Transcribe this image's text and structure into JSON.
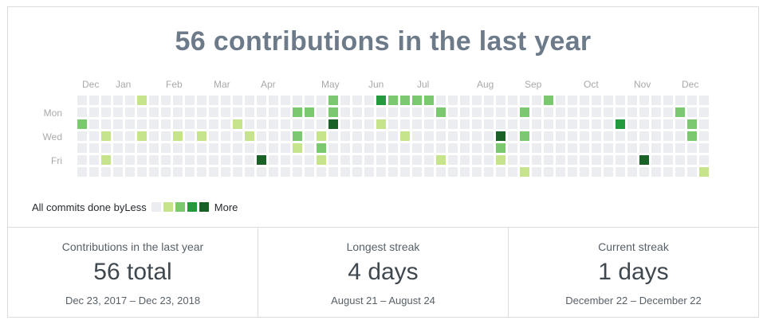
{
  "title": "56 contributions in the last year",
  "legend": {
    "prefix": "All commits done by",
    "less": "Less",
    "more": "More"
  },
  "chart_data": {
    "type": "heatmap",
    "weeks": 53,
    "days": 7,
    "levels": [
      "#ebedf0",
      "#c6e48b",
      "#7bc96f",
      "#239a3b",
      "#196127"
    ],
    "months": [
      {
        "label": "Dec",
        "week": 0.4
      },
      {
        "label": "Jan",
        "week": 3.2
      },
      {
        "label": "Feb",
        "week": 7.4
      },
      {
        "label": "Mar",
        "week": 11.4
      },
      {
        "label": "Apr",
        "week": 15.3
      },
      {
        "label": "May",
        "week": 20.4
      },
      {
        "label": "Jun",
        "week": 24.3
      },
      {
        "label": "Jul",
        "week": 28.4
      },
      {
        "label": "Aug",
        "week": 33.4
      },
      {
        "label": "Sep",
        "week": 37.4
      },
      {
        "label": "Oct",
        "week": 42.3
      },
      {
        "label": "Nov",
        "week": 46.5
      },
      {
        "label": "Dec",
        "week": 50.5
      }
    ],
    "day_labels": [
      {
        "label": "Mon",
        "row": 1
      },
      {
        "label": "Wed",
        "row": 3
      },
      {
        "label": "Fri",
        "row": 5
      }
    ],
    "cells": [
      [
        5,
        0,
        1
      ],
      [
        21,
        0,
        2
      ],
      [
        25,
        0,
        3
      ],
      [
        26,
        0,
        2
      ],
      [
        27,
        0,
        2
      ],
      [
        28,
        0,
        2
      ],
      [
        29,
        0,
        2
      ],
      [
        39,
        0,
        2
      ],
      [
        18,
        1,
        2
      ],
      [
        19,
        1,
        2
      ],
      [
        21,
        1,
        2
      ],
      [
        30,
        1,
        2
      ],
      [
        37,
        1,
        2
      ],
      [
        50,
        1,
        2
      ],
      [
        0,
        2,
        2
      ],
      [
        13,
        2,
        1
      ],
      [
        21,
        2,
        4
      ],
      [
        25,
        2,
        1
      ],
      [
        45,
        2,
        3
      ],
      [
        51,
        2,
        2
      ],
      [
        2,
        3,
        1
      ],
      [
        5,
        3,
        1
      ],
      [
        8,
        3,
        1
      ],
      [
        10,
        3,
        1
      ],
      [
        14,
        3,
        1
      ],
      [
        18,
        3,
        2
      ],
      [
        20,
        3,
        1
      ],
      [
        27,
        3,
        1
      ],
      [
        35,
        3,
        4
      ],
      [
        37,
        3,
        2
      ],
      [
        51,
        3,
        2
      ],
      [
        18,
        4,
        1
      ],
      [
        20,
        4,
        2
      ],
      [
        35,
        4,
        2
      ],
      [
        2,
        5,
        1
      ],
      [
        15,
        5,
        4
      ],
      [
        20,
        5,
        1
      ],
      [
        30,
        5,
        1
      ],
      [
        35,
        5,
        1
      ],
      [
        47,
        5,
        4
      ],
      [
        37,
        6,
        1
      ],
      [
        52,
        6,
        1
      ]
    ]
  },
  "stats": [
    {
      "label": "Contributions in the last year",
      "value": "56 total",
      "range": "Dec 23, 2017 – Dec 23, 2018"
    },
    {
      "label": "Longest streak",
      "value": "4 days",
      "range": "August 21 – August 24"
    },
    {
      "label": "Current streak",
      "value": "1 days",
      "range": "December 22 – December 22"
    }
  ]
}
